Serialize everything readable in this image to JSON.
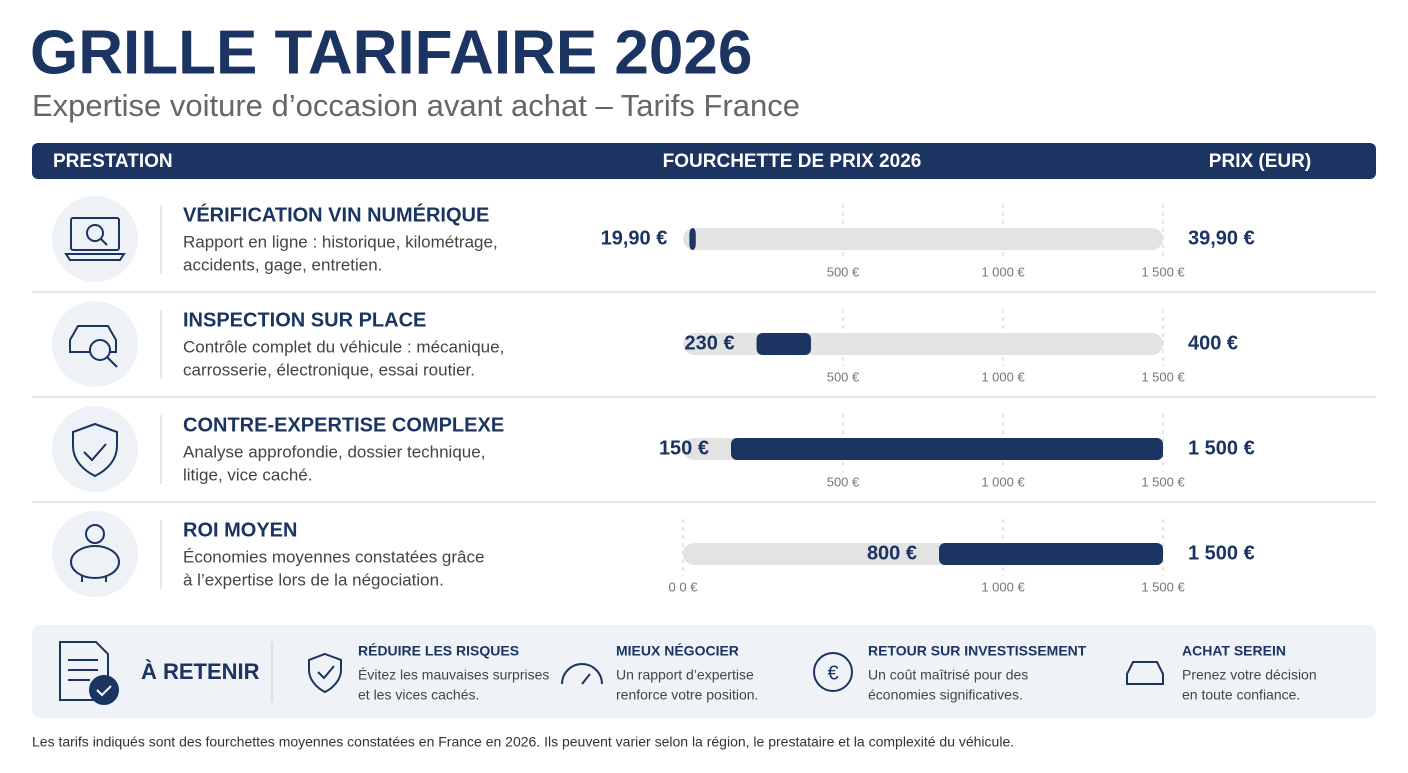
{
  "header": {
    "title": "GRILLE TARIFAIRE 2026",
    "subtitle": "Expertise voiture d’occasion avant achat – Tarifs France"
  },
  "table": {
    "columns": [
      "PRESTATION",
      "FOURCHETTE DE PRIX 2026",
      "PRIX (EUR)"
    ]
  },
  "chart_data": {
    "type": "range",
    "categories": [
      "VÉRIFICATION VIN NUMÉRIQUE",
      "INSPECTION SUR PLACE",
      "CONTRE-EXPERTISE COMPLEXE",
      "ROI MOYEN"
    ],
    "descriptions": [
      [
        "Rapport en ligne : historique, kilométrage,",
        "accidents, gage, entretien."
      ],
      [
        "Contrôle complet du véhicule : mécanique,",
        "carrosserie, électronique, essai routier."
      ],
      [
        "Analyse approfondie, dossier technique,",
        "litige, vice caché."
      ],
      [
        "Économies moyennes constatées grâce",
        "à l’expertise lors de la négociation."
      ]
    ],
    "low": [
      19.9,
      230,
      150,
      800
    ],
    "low_labels": [
      "19,90 €",
      "230 €",
      "150 €",
      "800 €"
    ],
    "high": [
      39.9,
      400,
      1500,
      1500
    ],
    "high_labels": [
      "39,90 €",
      "400 €",
      "1 500 €",
      "1 500 €"
    ],
    "row_ticks": [
      [
        {
          "value": 500,
          "label": "500 €"
        },
        {
          "value": 1000,
          "label": "1 000 €"
        },
        {
          "value": 1500,
          "label": "1 500 €"
        }
      ],
      [
        {
          "value": 500,
          "label": "500 €"
        },
        {
          "value": 1000,
          "label": "1 000 €"
        },
        {
          "value": 1500,
          "label": "1 500 €"
        }
      ],
      [
        {
          "value": 500,
          "label": "500 €"
        },
        {
          "value": 1000,
          "label": "1 000 €"
        },
        {
          "value": 1500,
          "label": "1 500 €"
        }
      ],
      [
        {
          "value": 0,
          "label": "0 0 €"
        },
        {
          "value": 1000,
          "label": "1 000 €"
        },
        {
          "value": 1500,
          "label": "1 500 €"
        }
      ]
    ],
    "xlim": [
      0,
      1500
    ],
    "color": "#1b3461",
    "track_color": "#e3e3e3"
  },
  "summary": {
    "title": "À RETENIR",
    "items": [
      {
        "title": "RÉDUIRE LES RISQUES",
        "lines": [
          "Évitez les mauvaises surprises",
          "et les vices cachés."
        ]
      },
      {
        "title": "MIEUX NÉGOCIER",
        "lines": [
          "Un rapport d’expertise",
          "renforce votre position."
        ]
      },
      {
        "title": "RETOUR SUR INVESTISSEMENT",
        "lines": [
          "Un coût maîtrisé pour des",
          "économies significatives."
        ]
      },
      {
        "title": "ACHAT SEREIN",
        "lines": [
          "Prenez votre décision",
          "en toute confiance."
        ]
      }
    ]
  },
  "note": "Les tarifs indiqués sont des fourchettes moyennes constatées en France en 2026. Ils peuvent varier selon la région, le prestataire et la complexité du véhicule."
}
